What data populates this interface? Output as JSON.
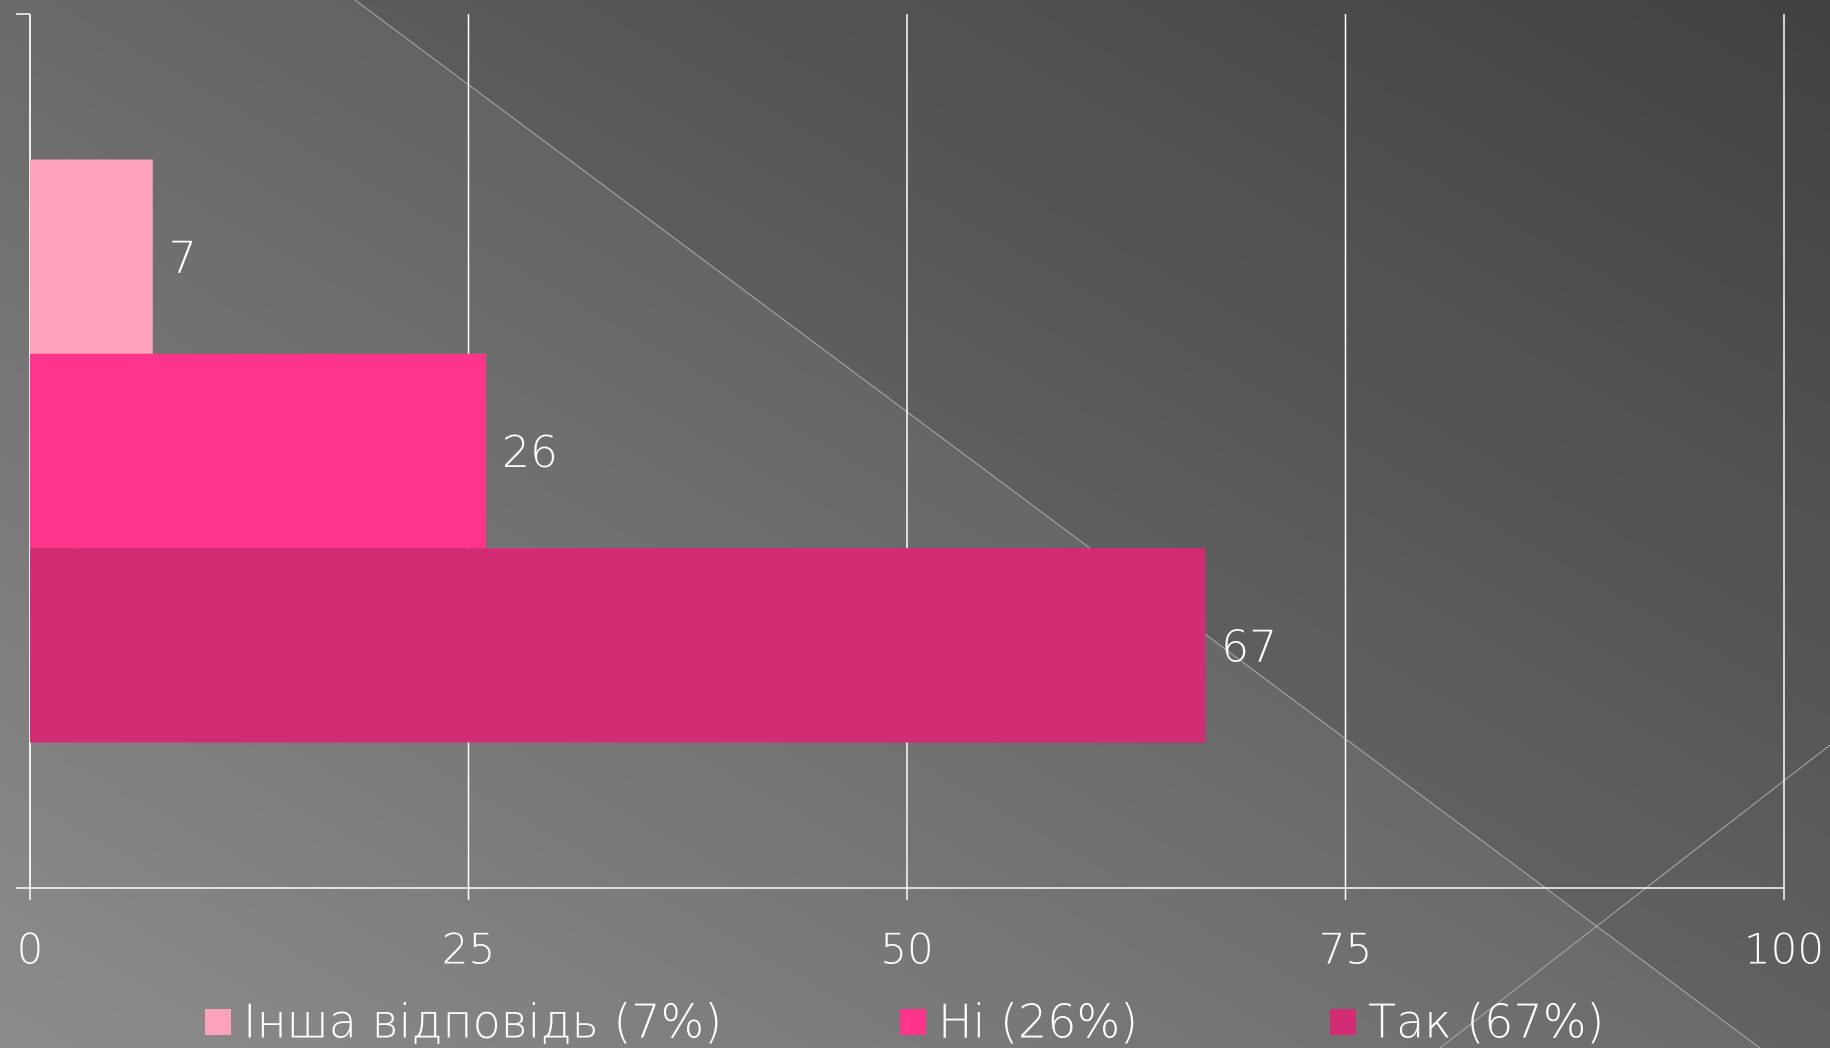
{
  "chart_data": {
    "type": "bar",
    "orientation": "horizontal",
    "categories": [
      null
    ],
    "series": [
      {
        "name": "Інша відповідь (7%)",
        "color": "#ffa3bd",
        "values": [
          7
        ]
      },
      {
        "name": "Ні (26%)",
        "color": "#ff358b",
        "values": [
          26
        ]
      },
      {
        "name": "Так (67%)",
        "color": "#d42c74",
        "values": [
          67
        ]
      }
    ],
    "xlim": [
      0,
      100
    ],
    "xticks": [
      0,
      25,
      50,
      75,
      100
    ],
    "grid": true,
    "legend": "bottom",
    "data_labels": true
  }
}
